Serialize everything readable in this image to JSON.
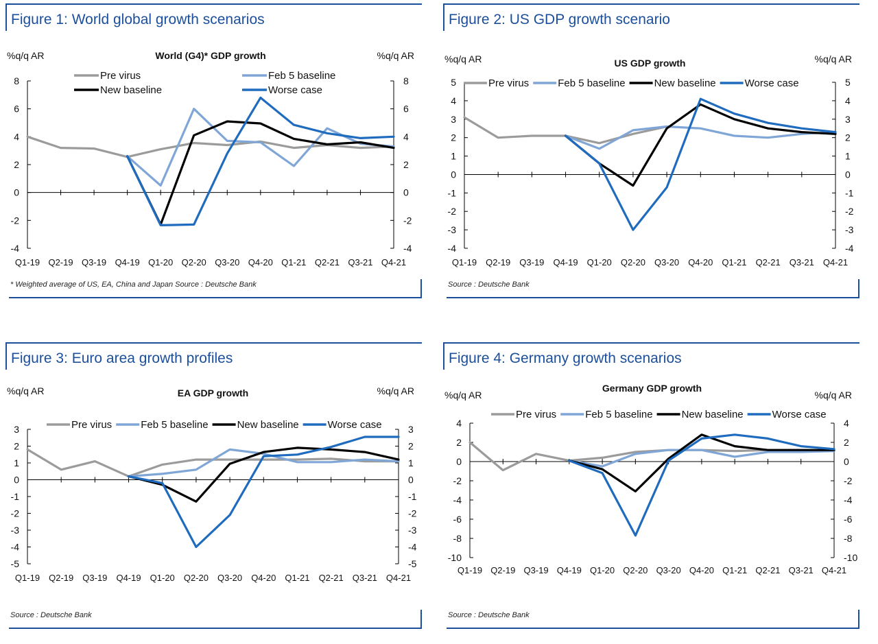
{
  "figures": [
    {
      "title": "Figure 1: World global growth scenarios",
      "source": "* Weighted average of US, EA, China and Japan Source : Deutsche Bank",
      "chart_data": {
        "type": "line",
        "title": "World (G4)* GDP growth",
        "ylabel_left": "%q/q AR",
        "ylabel_right": "%q/q AR",
        "legend_layout": "two-column",
        "categories": [
          "Q1-19",
          "Q2-19",
          "Q3-19",
          "Q4-19",
          "Q1-20",
          "Q2-20",
          "Q3-20",
          "Q4-20",
          "Q1-21",
          "Q2-21",
          "Q3-21",
          "Q4-21"
        ],
        "ylim": [
          -4,
          8
        ],
        "yticks": [
          -4,
          -2,
          0,
          2,
          4,
          6,
          8
        ],
        "grid": false,
        "series": [
          {
            "name": "Pre virus",
            "color": "#9b9b9b",
            "values": [
              4.0,
              3.2,
              3.15,
              2.55,
              3.1,
              3.55,
              3.4,
              3.65,
              3.2,
              3.4,
              3.2,
              3.3
            ]
          },
          {
            "name": "Feb 5 baseline",
            "color": "#7fa6d6",
            "values": [
              null,
              null,
              null,
              2.6,
              0.5,
              6.0,
              3.7,
              3.6,
              1.9,
              4.6,
              3.5,
              3.3
            ]
          },
          {
            "name": "New baseline",
            "color": "#000000",
            "values": [
              null,
              null,
              null,
              2.6,
              -2.3,
              4.1,
              5.1,
              4.95,
              3.85,
              3.45,
              3.6,
              3.2
            ]
          },
          {
            "name": "Worse case",
            "color": "#1f6bbd",
            "values": [
              null,
              null,
              null,
              2.6,
              -2.35,
              -2.3,
              2.8,
              6.8,
              4.85,
              4.25,
              3.9,
              4.0
            ]
          }
        ]
      }
    },
    {
      "title": "Figure 2: US GDP growth scenario",
      "source": "Source : Deutsche Bank",
      "chart_data": {
        "type": "line",
        "title": "US GDP growth",
        "ylabel_left": "%q/q AR",
        "ylabel_right": "%q/q AR",
        "legend_layout": "one-row",
        "categories": [
          "Q1-19",
          "Q2-19",
          "Q3-19",
          "Q4-19",
          "Q1-20",
          "Q2-20",
          "Q3-20",
          "Q4-20",
          "Q1-21",
          "Q2-21",
          "Q3-21",
          "Q4-21"
        ],
        "ylim": [
          -4,
          5
        ],
        "yticks": [
          -4,
          -3,
          -2,
          -1,
          0,
          1,
          2,
          3,
          4,
          5
        ],
        "grid": false,
        "series": [
          {
            "name": "Pre virus",
            "color": "#9b9b9b",
            "values": [
              3.1,
              2.0,
              2.1,
              2.1,
              1.7,
              2.2,
              2.6,
              null,
              null,
              null,
              null,
              null
            ]
          },
          {
            "name": "Feb 5 baseline",
            "color": "#7fa6d6",
            "values": [
              null,
              null,
              null,
              2.1,
              1.4,
              2.4,
              2.6,
              2.5,
              2.1,
              2.0,
              2.2,
              2.3
            ]
          },
          {
            "name": "New baseline",
            "color": "#000000",
            "values": [
              null,
              null,
              null,
              2.1,
              0.6,
              -0.6,
              2.5,
              3.8,
              3.0,
              2.5,
              2.3,
              2.2
            ]
          },
          {
            "name": "Worse case",
            "color": "#1f6bbd",
            "values": [
              null,
              null,
              null,
              2.1,
              0.6,
              -3.0,
              -0.7,
              4.1,
              3.3,
              2.8,
              2.5,
              2.3
            ]
          }
        ]
      }
    },
    {
      "title": "Figure 3: Euro area growth profiles",
      "source": "Source : Deutsche Bank",
      "chart_data": {
        "type": "line",
        "title": "EA GDP growth",
        "ylabel_left": "%q/q AR",
        "ylabel_right": "%q/q AR",
        "legend_layout": "one-row",
        "categories": [
          "Q1-19",
          "Q2-19",
          "Q3-19",
          "Q4-19",
          "Q1-20",
          "Q2-20",
          "Q3-20",
          "Q4-20",
          "Q1-21",
          "Q2-21",
          "Q3-21",
          "Q4-21"
        ],
        "ylim": [
          -5,
          3
        ],
        "yticks": [
          -5,
          -4,
          -3,
          -2,
          -1,
          0,
          1,
          2,
          3
        ],
        "grid": false,
        "series": [
          {
            "name": "Pre virus",
            "color": "#9b9b9b",
            "values": [
              1.8,
              0.6,
              1.1,
              0.2,
              0.9,
              1.2,
              1.2,
              1.2,
              1.2,
              1.25,
              1.1,
              1.1
            ]
          },
          {
            "name": "Feb 5 baseline",
            "color": "#7fa6d6",
            "values": [
              null,
              null,
              null,
              0.2,
              0.35,
              0.6,
              1.8,
              1.55,
              1.05,
              1.05,
              1.2,
              1.1
            ]
          },
          {
            "name": "New baseline",
            "color": "#000000",
            "values": [
              null,
              null,
              null,
              0.2,
              -0.3,
              -1.3,
              0.95,
              1.65,
              1.9,
              1.8,
              1.65,
              1.2
            ]
          },
          {
            "name": "Worse case",
            "color": "#1f6bbd",
            "values": [
              null,
              null,
              null,
              0.2,
              -0.2,
              -4.0,
              -2.1,
              1.4,
              1.5,
              1.95,
              2.55,
              2.55
            ]
          }
        ]
      }
    },
    {
      "title": "Figure 4: Germany growth scenarios",
      "source": "Source : Deutsche Bank",
      "chart_data": {
        "type": "line",
        "title": "Germany GDP growth",
        "ylabel_left": "%q/q AR",
        "ylabel_right": "%q/q AR",
        "legend_layout": "one-row",
        "categories": [
          "Q1-19",
          "Q2-19",
          "Q3-19",
          "Q4-19",
          "Q1-20",
          "Q2-20",
          "Q3-20",
          "Q4-20",
          "Q1-21",
          "Q2-21",
          "Q3-21",
          "Q4-21"
        ],
        "ylim": [
          -10,
          4
        ],
        "yticks": [
          -10,
          -8,
          -6,
          -4,
          -2,
          0,
          2,
          4
        ],
        "grid": false,
        "series": [
          {
            "name": "Pre virus",
            "color": "#9b9b9b",
            "values": [
              2.0,
              -0.9,
              0.8,
              0.1,
              0.4,
              1.0,
              1.2,
              1.2,
              1.1,
              1.2,
              1.2,
              1.1
            ]
          },
          {
            "name": "Feb 5 baseline",
            "color": "#7fa6d6",
            "values": [
              null,
              null,
              null,
              0.1,
              -0.5,
              0.8,
              1.2,
              1.2,
              0.5,
              1.0,
              1.0,
              1.1
            ]
          },
          {
            "name": "New baseline",
            "color": "#000000",
            "values": [
              null,
              null,
              null,
              0.1,
              -0.8,
              -3.1,
              0.3,
              2.8,
              1.6,
              1.2,
              1.2,
              1.2
            ]
          },
          {
            "name": "Worse case",
            "color": "#1f6bbd",
            "values": [
              null,
              null,
              null,
              0.1,
              -1.2,
              -7.7,
              0.1,
              2.4,
              2.8,
              2.4,
              1.6,
              1.3
            ]
          }
        ]
      }
    }
  ]
}
